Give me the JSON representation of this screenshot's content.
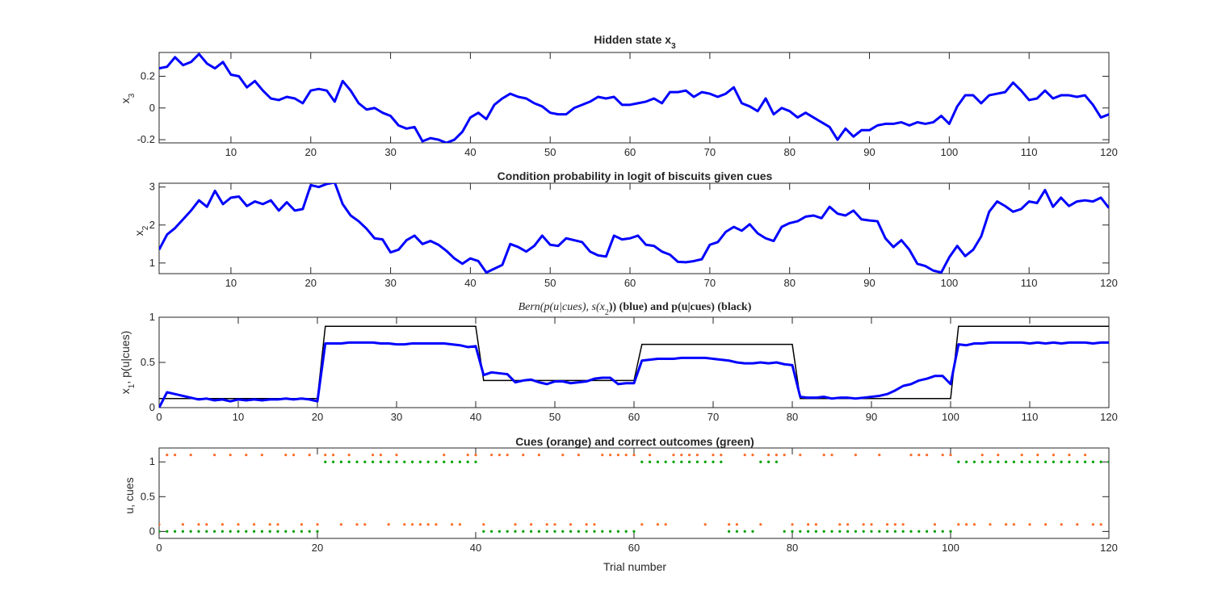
{
  "figure": {
    "background": "#ffffff",
    "colors": {
      "blue": "#0000ff",
      "black": "#000000",
      "orange": "#ff6d29",
      "green": "#00a000",
      "axis": "#262626"
    }
  },
  "chart_data": [
    {
      "type": "line",
      "title": "Hidden state x3",
      "title_main": "Hidden state x",
      "title_sub": "3",
      "xlabel": "",
      "ylabel": "x3",
      "ylabel_main": "x",
      "ylabel_sub": "3",
      "xlim": [
        1,
        120
      ],
      "ylim": [
        -0.22,
        0.35
      ],
      "xticks": [
        10,
        20,
        30,
        40,
        50,
        60,
        70,
        80,
        90,
        100,
        110,
        120
      ],
      "yticks": [
        -0.2,
        0,
        0.2
      ],
      "ytick_labels": [
        "-0.2",
        "0",
        "0.2"
      ],
      "grid": false,
      "series": [
        {
          "color": "#0000ff",
          "x_start": 1,
          "values": [
            0.25,
            0.26,
            0.32,
            0.27,
            0.29,
            0.34,
            0.28,
            0.25,
            0.29,
            0.21,
            0.2,
            0.13,
            0.17,
            0.11,
            0.06,
            0.05,
            0.07,
            0.06,
            0.03,
            0.11,
            0.12,
            0.11,
            0.04,
            0.17,
            0.11,
            0.03,
            -0.01,
            0.0,
            -0.03,
            -0.05,
            -0.11,
            -0.13,
            -0.12,
            -0.21,
            -0.19,
            -0.2,
            -0.22,
            -0.2,
            -0.15,
            -0.06,
            -0.03,
            -0.07,
            0.02,
            0.06,
            0.09,
            0.07,
            0.06,
            0.03,
            0.01,
            -0.03,
            -0.04,
            -0.04,
            0.0,
            0.02,
            0.04,
            0.07,
            0.06,
            0.07,
            0.02,
            0.02,
            0.03,
            0.04,
            0.06,
            0.03,
            0.1,
            0.1,
            0.11,
            0.07,
            0.1,
            0.09,
            0.07,
            0.09,
            0.13,
            0.03,
            0.01,
            -0.02,
            0.06,
            -0.04,
            0.0,
            -0.02,
            -0.06,
            -0.03,
            -0.06,
            -0.09,
            -0.12,
            -0.2,
            -0.13,
            -0.18,
            -0.14,
            -0.14,
            -0.11,
            -0.1,
            -0.1,
            -0.09,
            -0.11,
            -0.09,
            -0.1,
            -0.09,
            -0.05,
            -0.1,
            0.01,
            0.08,
            0.08,
            0.03,
            0.08,
            0.09,
            0.1,
            0.16,
            0.11,
            0.05,
            0.06,
            0.11,
            0.06,
            0.08,
            0.08,
            0.07,
            0.08,
            0.02,
            -0.06,
            -0.04,
            -0.01
          ]
        }
      ]
    },
    {
      "type": "line",
      "title": "Condition probability in logit of biscuits given cues",
      "xlabel": "",
      "ylabel": "x2",
      "ylabel_main": "x",
      "ylabel_sub": "2",
      "xlim": [
        1,
        120
      ],
      "ylim": [
        0.72,
        3.1
      ],
      "xticks": [
        10,
        20,
        30,
        40,
        50,
        60,
        70,
        80,
        90,
        100,
        110,
        120
      ],
      "yticks": [
        1,
        2,
        3
      ],
      "ytick_labels": [
        "1",
        "2",
        "3"
      ],
      "grid": false,
      "series": [
        {
          "color": "#0000ff",
          "x_start": 1,
          "values": [
            1.35,
            1.75,
            1.92,
            2.15,
            2.38,
            2.65,
            2.48,
            2.9,
            2.55,
            2.72,
            2.75,
            2.5,
            2.62,
            2.55,
            2.65,
            2.38,
            2.6,
            2.38,
            2.42,
            3.05,
            3.0,
            3.08,
            3.12,
            2.55,
            2.25,
            2.1,
            1.9,
            1.65,
            1.62,
            1.28,
            1.35,
            1.6,
            1.72,
            1.5,
            1.58,
            1.48,
            1.32,
            1.12,
            0.98,
            1.12,
            1.05,
            0.75,
            0.85,
            0.95,
            1.5,
            1.42,
            1.3,
            1.45,
            1.72,
            1.48,
            1.45,
            1.65,
            1.6,
            1.55,
            1.3,
            1.2,
            1.17,
            1.72,
            1.62,
            1.65,
            1.72,
            1.48,
            1.45,
            1.3,
            1.22,
            1.03,
            1.02,
            1.05,
            1.1,
            1.48,
            1.55,
            1.82,
            1.95,
            1.85,
            2.02,
            1.78,
            1.65,
            1.58,
            1.95,
            2.05,
            2.1,
            2.22,
            2.25,
            2.18,
            2.48,
            2.3,
            2.25,
            2.38,
            2.15,
            2.12,
            2.1,
            1.65,
            1.42,
            1.6,
            1.35,
            0.98,
            0.92,
            0.8,
            0.75,
            1.15,
            1.45,
            1.18,
            1.35,
            1.7,
            2.35,
            2.62,
            2.5,
            2.35,
            2.42,
            2.62,
            2.58,
            2.92,
            2.48,
            2.72,
            2.5,
            2.62,
            2.65,
            2.62,
            2.72,
            2.45
          ]
        }
      ]
    },
    {
      "type": "line",
      "title": "Bern(p(u|cues), s(x2)) (blue) and p(u|cues) (black)",
      "title_main": "Bern(p(u|cues), s(x",
      "title_sub": "2",
      "title_tail": ")) (blue) and p(u|cues) (black)",
      "xlabel": "",
      "ylabel": "x1, p(u|cues)",
      "ylabel_main": "x",
      "ylabel_sub": "1",
      "ylabel_tail": ", p(u|cues)",
      "xlim": [
        0,
        120
      ],
      "ylim": [
        0,
        1
      ],
      "xticks": [
        0,
        10,
        20,
        30,
        40,
        50,
        60,
        70,
        80,
        90,
        100,
        110,
        120
      ],
      "yticks": [
        0,
        0.5,
        1
      ],
      "ytick_labels": [
        "0",
        "0.5",
        "1"
      ],
      "grid": false,
      "series": [
        {
          "color": "#0000ff",
          "x_start": 0,
          "values": [
            0.0,
            0.17,
            0.15,
            0.13,
            0.11,
            0.09,
            0.1,
            0.08,
            0.09,
            0.07,
            0.09,
            0.08,
            0.09,
            0.08,
            0.09,
            0.09,
            0.1,
            0.09,
            0.1,
            0.09,
            0.07,
            0.71,
            0.71,
            0.71,
            0.72,
            0.72,
            0.72,
            0.72,
            0.71,
            0.71,
            0.7,
            0.7,
            0.71,
            0.71,
            0.71,
            0.71,
            0.71,
            0.7,
            0.69,
            0.67,
            0.68,
            0.36,
            0.39,
            0.38,
            0.37,
            0.28,
            0.3,
            0.31,
            0.28,
            0.26,
            0.29,
            0.29,
            0.27,
            0.28,
            0.29,
            0.32,
            0.33,
            0.33,
            0.26,
            0.27,
            0.27,
            0.52,
            0.53,
            0.54,
            0.54,
            0.54,
            0.55,
            0.55,
            0.55,
            0.55,
            0.54,
            0.53,
            0.52,
            0.5,
            0.49,
            0.49,
            0.5,
            0.49,
            0.5,
            0.48,
            0.47,
            0.12,
            0.11,
            0.11,
            0.12,
            0.1,
            0.11,
            0.11,
            0.1,
            0.11,
            0.12,
            0.13,
            0.15,
            0.19,
            0.24,
            0.26,
            0.3,
            0.32,
            0.35,
            0.35,
            0.26,
            0.7,
            0.69,
            0.71,
            0.71,
            0.72,
            0.72,
            0.72,
            0.72,
            0.72,
            0.71,
            0.72,
            0.71,
            0.72,
            0.71,
            0.72,
            0.72,
            0.72,
            0.71,
            0.72,
            0.72
          ]
        },
        {
          "color": "#000000",
          "step": true,
          "segments": [
            {
              "x0": 0,
              "x1": 20,
              "value": 0.1
            },
            {
              "x0": 21,
              "x1": 40,
              "value": 0.9
            },
            {
              "x0": 41,
              "x1": 60,
              "value": 0.3
            },
            {
              "x0": 61,
              "x1": 80,
              "value": 0.7
            },
            {
              "x0": 81,
              "x1": 100,
              "value": 0.1
            },
            {
              "x0": 101,
              "x1": 120,
              "value": 0.9
            }
          ]
        }
      ]
    },
    {
      "type": "scatter",
      "title": "Cues (orange) and correct outcomes (green)",
      "xlabel": "Trial number",
      "ylabel": "u, cues",
      "xlim": [
        0,
        120
      ],
      "ylim": [
        -0.1,
        1.2
      ],
      "xticks": [
        0,
        20,
        40,
        60,
        80,
        100,
        120
      ],
      "yticks": [
        0,
        0.5,
        1
      ],
      "ytick_labels": [
        "0",
        "0.5",
        "1"
      ],
      "grid": false,
      "series": [
        {
          "color": "#ff6d29",
          "y_high": 1.1,
          "y_low": 0.1,
          "values": [
            0,
            1,
            1,
            0,
            1,
            0,
            0,
            1,
            0,
            1,
            0,
            1,
            0,
            1,
            0,
            0,
            1,
            1,
            0,
            1,
            0,
            1,
            1,
            0,
            1,
            0,
            0,
            1,
            1,
            0,
            1,
            0,
            0,
            0,
            0,
            0,
            1,
            0,
            0,
            1,
            1,
            0,
            1,
            1,
            1,
            0,
            1,
            0,
            1,
            0,
            0,
            1,
            0,
            1,
            0,
            0,
            1,
            1,
            1,
            1,
            1,
            0,
            1,
            0,
            0,
            1,
            1,
            1,
            1,
            0,
            1,
            1,
            0,
            0,
            1,
            1,
            0,
            1,
            1,
            1,
            0,
            1,
            0,
            0,
            1,
            1,
            0,
            0,
            1,
            0,
            0,
            1,
            0,
            0,
            0,
            1,
            1,
            1,
            0,
            1,
            1,
            0,
            0,
            0,
            1,
            0,
            1,
            0,
            0,
            1,
            0,
            1,
            0,
            1,
            0,
            1,
            0,
            1,
            0,
            0
          ]
        },
        {
          "color": "#00a000",
          "y_high": 1,
          "y_low": 0,
          "values": [
            0,
            0,
            0,
            0,
            0,
            0,
            0,
            0,
            0,
            0,
            0,
            0,
            0,
            0,
            0,
            0,
            0,
            0,
            0,
            0,
            0,
            1,
            1,
            1,
            1,
            1,
            1,
            1,
            1,
            1,
            1,
            1,
            1,
            1,
            1,
            1,
            1,
            1,
            1,
            1,
            1,
            0,
            0,
            0,
            0,
            0,
            0,
            0,
            0,
            0,
            0,
            0,
            0,
            0,
            0,
            0,
            0,
            0,
            0,
            0,
            0,
            1,
            1,
            1,
            1,
            1,
            1,
            1,
            1,
            1,
            1,
            1,
            0,
            0,
            0,
            0,
            1,
            1,
            1,
            0,
            0,
            0,
            0,
            0,
            0,
            0,
            0,
            0,
            0,
            0,
            0,
            0,
            0,
            0,
            0,
            0,
            0,
            0,
            0,
            0,
            0,
            1,
            1,
            1,
            1,
            1,
            1,
            1,
            1,
            1,
            1,
            1,
            1,
            1,
            1,
            1,
            1,
            1,
            1,
            1,
            1
          ]
        }
      ]
    }
  ]
}
